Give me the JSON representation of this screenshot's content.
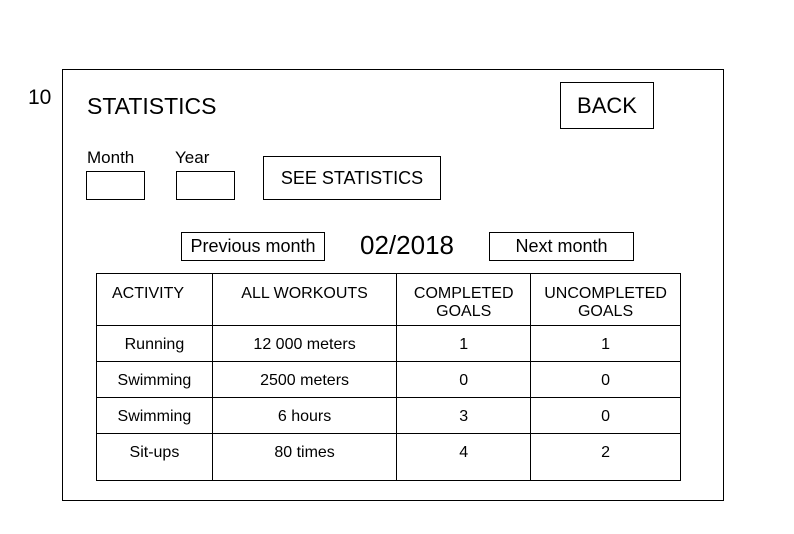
{
  "page_number": "10",
  "screen": {
    "title": "STATISTICS",
    "back_label": "BACK"
  },
  "filter": {
    "month_label": "Month",
    "year_label": "Year",
    "month_value": "",
    "year_value": "",
    "see_statistics_label": "SEE STATISTICS"
  },
  "navigation": {
    "previous_label": "Previous month",
    "current": "02/2018",
    "next_label": "Next month"
  },
  "table": {
    "headers": {
      "activity": "ACTIVITY",
      "all_workouts": "ALL WORKOUTS",
      "completed_line1": "COMPLETED",
      "completed_line2": "GOALS",
      "uncompleted_line1": "UNCOMPLETED",
      "uncompleted_line2": "GOALS"
    },
    "rows": [
      {
        "activity": "Running",
        "workouts": "12 000 meters",
        "completed": "1",
        "uncompleted": "1"
      },
      {
        "activity": "Swimming",
        "workouts": "2500 meters",
        "completed": "0",
        "uncompleted": "0"
      },
      {
        "activity": "Swimming",
        "workouts": "6 hours",
        "completed": "3",
        "uncompleted": "0"
      },
      {
        "activity": "Sit-ups",
        "workouts": "80 times",
        "completed": "4",
        "uncompleted": "2"
      }
    ]
  }
}
